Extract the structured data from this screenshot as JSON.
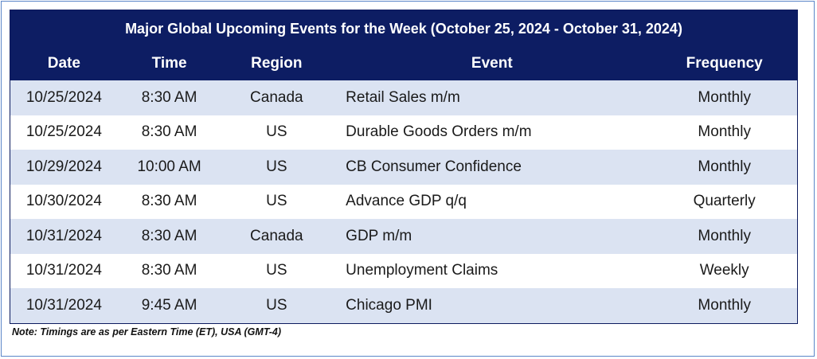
{
  "title": "Major Global Upcoming Events for the Week (October 25, 2024 - October 31, 2024)",
  "columns": {
    "date": "Date",
    "time": "Time",
    "region": "Region",
    "event": "Event",
    "frequency": "Frequency"
  },
  "rows": [
    {
      "date": "10/25/2024",
      "time": "8:30 AM",
      "region": "Canada",
      "event": "Retail Sales m/m",
      "frequency": "Monthly"
    },
    {
      "date": "10/25/2024",
      "time": "8:30 AM",
      "region": "US",
      "event": "Durable Goods Orders m/m",
      "frequency": "Monthly"
    },
    {
      "date": "10/29/2024",
      "time": "10:00 AM",
      "region": "US",
      "event": "CB Consumer Confidence",
      "frequency": "Monthly"
    },
    {
      "date": "10/30/2024",
      "time": "8:30 AM",
      "region": "US",
      "event": "Advance GDP q/q",
      "frequency": "Quarterly"
    },
    {
      "date": "10/31/2024",
      "time": "8:30 AM",
      "region": "Canada",
      "event": "GDP m/m",
      "frequency": "Monthly"
    },
    {
      "date": "10/31/2024",
      "time": "8:30 AM",
      "region": "US",
      "event": "Unemployment Claims",
      "frequency": "Weekly"
    },
    {
      "date": "10/31/2024",
      "time": "9:45 AM",
      "region": "US",
      "event": "Chicago PMI",
      "frequency": "Monthly"
    }
  ],
  "note": "Note: Timings are as per Eastern Time (ET), USA (GMT-4)",
  "colors": {
    "header_bg": "#0d1d63",
    "band_bg": "#dbe3f2",
    "frame_border": "#5b86c8"
  }
}
